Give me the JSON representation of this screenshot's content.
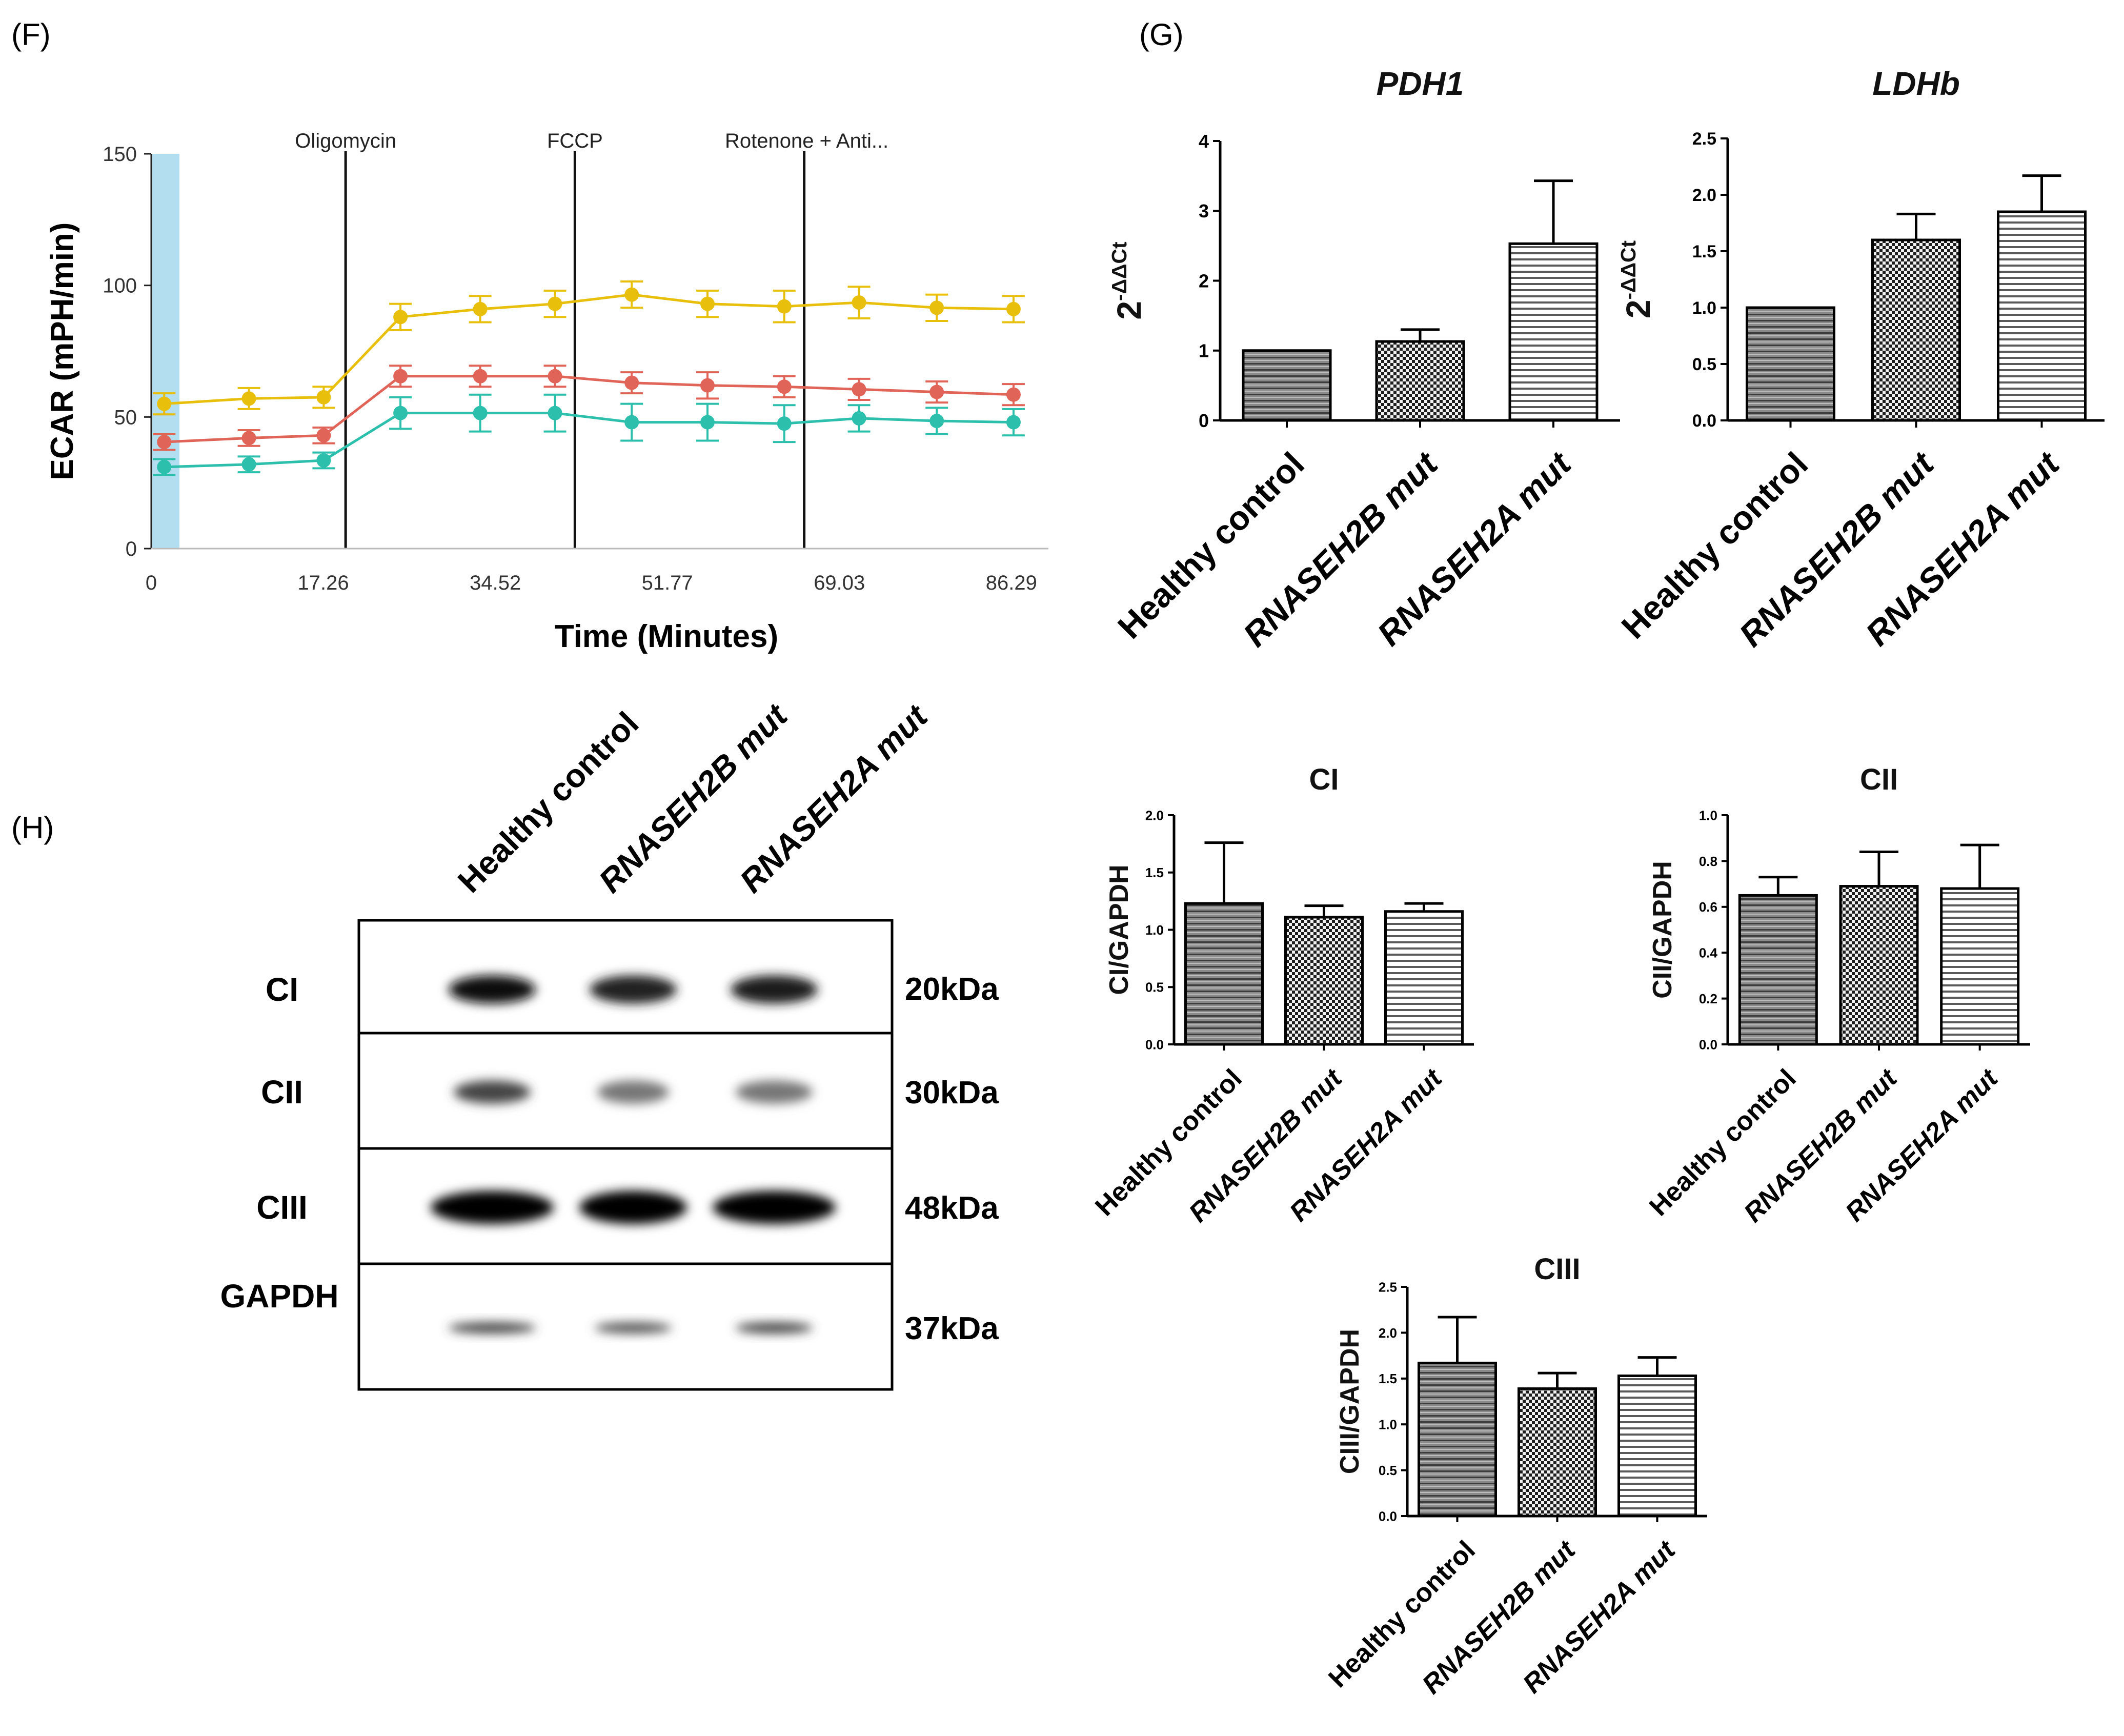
{
  "panels": {
    "F": "(F)",
    "G": "(G)",
    "H": "(H)"
  },
  "colors": {
    "yellow": "#e8c00c",
    "red": "#e06458",
    "teal": "#2bbfac",
    "baseline": "#b3def0"
  },
  "chart_data": [
    {
      "id": "ecar",
      "type": "line",
      "title": "",
      "xlabel": "Time  (Minutes)",
      "ylabel": "ECAR (mPH/min)",
      "xlim": [
        0,
        90
      ],
      "ylim": [
        0,
        150
      ],
      "xticks": [
        "0",
        "17.26",
        "34.52",
        "51.77",
        "69.03",
        "86.29"
      ],
      "xtick_values": [
        0,
        17.26,
        34.52,
        51.77,
        69.03,
        86.29
      ],
      "yticks": [
        "0",
        "50",
        "100",
        "150"
      ],
      "ytick_values": [
        0,
        50,
        100,
        150
      ],
      "injections": [
        {
          "label": "Oligomycin",
          "x": 19.5
        },
        {
          "label": "FCCP",
          "x": 42.5
        },
        {
          "label": "Rotenone + Anti...",
          "x": 65.5
        }
      ],
      "x": [
        1.3,
        9.8,
        17.3,
        25.0,
        33.0,
        40.5,
        48.2,
        55.8,
        63.5,
        71.0,
        78.8,
        86.5
      ],
      "series": [
        {
          "name": "yellow",
          "color": "#e8c00c",
          "values": [
            55,
            57,
            57.5,
            88,
            91,
            93,
            96.5,
            93,
            92,
            93.5,
            91.5,
            91
          ],
          "errors": [
            4,
            4,
            4,
            5,
            5,
            5,
            5,
            5,
            6,
            6,
            5,
            5
          ]
        },
        {
          "name": "red",
          "color": "#e06458",
          "values": [
            40.5,
            42,
            43,
            65.5,
            65.5,
            65.5,
            63,
            62,
            61.5,
            60.5,
            59.5,
            58.5
          ],
          "errors": [
            3,
            3,
            3,
            4,
            4,
            4,
            4,
            5,
            4,
            4,
            4,
            4
          ]
        },
        {
          "name": "teal",
          "color": "#2bbfac",
          "values": [
            31,
            32,
            33.5,
            51.5,
            51.5,
            51.5,
            48,
            48,
            47.5,
            49.5,
            48.5,
            48
          ],
          "errors": [
            3,
            3,
            3,
            6,
            7,
            7,
            7,
            7,
            7,
            5,
            5,
            5
          ]
        }
      ]
    },
    {
      "id": "pdh1",
      "type": "bar",
      "title": "PDH1",
      "ylabel": "2-ΔΔCt",
      "ylabel_base": "2",
      "ylabel_sup": "-ΔΔCt",
      "categories": [
        "Healthy control",
        "RNASEH2B mut",
        "RNASEH2A mut"
      ],
      "values": [
        1.0,
        1.13,
        2.53
      ],
      "errors": [
        0,
        0.17,
        0.9
      ],
      "ylim": [
        0,
        4
      ],
      "yticks": [
        "0",
        "1",
        "2",
        "3",
        "4"
      ],
      "ytick_values": [
        0,
        1,
        2,
        3,
        4
      ]
    },
    {
      "id": "ldhb",
      "type": "bar",
      "title": "LDHb",
      "ylabel": "2-ΔΔCt",
      "ylabel_base": "2",
      "ylabel_sup": "-ΔΔCt",
      "categories": [
        "Healthy control",
        "RNASEH2B mut",
        "RNASEH2A mut"
      ],
      "values": [
        1.0,
        1.6,
        1.85
      ],
      "errors": [
        0,
        0.23,
        0.32
      ],
      "ylim": [
        0,
        2.5
      ],
      "yticks": [
        "0.0",
        "0.5",
        "1.0",
        "1.5",
        "2.0",
        "2.5"
      ],
      "ytick_values": [
        0,
        0.5,
        1.0,
        1.5,
        2.0,
        2.5
      ]
    },
    {
      "id": "ci",
      "type": "bar",
      "title": "CI",
      "ylabel": "CI/GAPDH",
      "categories": [
        "Healthy control",
        "RNASEH2B mut",
        "RNASEH2A mut"
      ],
      "values": [
        1.23,
        1.11,
        1.16
      ],
      "errors": [
        0.53,
        0.1,
        0.07
      ],
      "ylim": [
        0,
        2.0
      ],
      "yticks": [
        "0.0",
        "0.5",
        "1.0",
        "1.5",
        "2.0"
      ],
      "ytick_values": [
        0,
        0.5,
        1.0,
        1.5,
        2.0
      ]
    },
    {
      "id": "cii",
      "type": "bar",
      "title": "CII",
      "ylabel": "CII/GAPDH",
      "categories": [
        "Healthy control",
        "RNASEH2B mut",
        "RNASEH2A mut"
      ],
      "values": [
        0.65,
        0.69,
        0.68
      ],
      "errors": [
        0.08,
        0.15,
        0.19
      ],
      "ylim": [
        0,
        1.0
      ],
      "yticks": [
        "0.0",
        "0.2",
        "0.4",
        "0.6",
        "0.8",
        "1.0"
      ],
      "ytick_values": [
        0,
        0.2,
        0.4,
        0.6,
        0.8,
        1.0
      ]
    },
    {
      "id": "ciii",
      "type": "bar",
      "title": "CIII",
      "ylabel": "CIII/GAPDH",
      "categories": [
        "Healthy control",
        "RNASEH2B mut",
        "RNASEH2A mut"
      ],
      "values": [
        1.67,
        1.39,
        1.53
      ],
      "errors": [
        0.5,
        0.17,
        0.2
      ],
      "ylim": [
        0,
        2.5
      ],
      "yticks": [
        "0.0",
        "0.5",
        "1.0",
        "1.5",
        "2.0",
        "2.5"
      ],
      "ytick_values": [
        0,
        0.5,
        1.0,
        1.5,
        2.0,
        2.5
      ]
    }
  ],
  "blot": {
    "lanes": [
      "Healthy control",
      "RNASEH2B mut",
      "RNASEH2A mut"
    ],
    "rows": [
      {
        "label": "CI",
        "kda": "20kDa"
      },
      {
        "label": "CII",
        "kda": "30kDa"
      },
      {
        "label": "CIII",
        "kda": "48kDa"
      },
      {
        "label": "GAPDH",
        "kda": "37kDa"
      }
    ]
  }
}
